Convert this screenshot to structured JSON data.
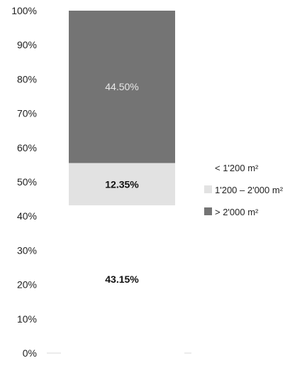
{
  "chart_data": {
    "type": "bar",
    "stacked": true,
    "categories": [
      ""
    ],
    "series": [
      {
        "name": "< 1'200 m²",
        "values": [
          43.15
        ],
        "color": "#ffffff",
        "label": "43.15%",
        "label_color": "#111111",
        "label_weight": "bold"
      },
      {
        "name": "1'200 – 2'000 m²",
        "values": [
          12.35
        ],
        "color": "#e2e2e2",
        "label": "12.35%",
        "label_color": "#111111",
        "label_weight": "bold"
      },
      {
        "name": "> 2'000 m²",
        "values": [
          44.5
        ],
        "color": "#747474",
        "label": "44.50%",
        "label_color": "#e9e9e9",
        "label_weight": "normal"
      }
    ],
    "ylim": [
      0,
      100
    ],
    "yticks": [
      "0%",
      "10%",
      "20%",
      "30%",
      "40%",
      "50%",
      "60%",
      "70%",
      "80%",
      "90%",
      "100%"
    ],
    "grid": false,
    "legend_position": "right",
    "title": "",
    "xlabel": "",
    "ylabel": ""
  }
}
